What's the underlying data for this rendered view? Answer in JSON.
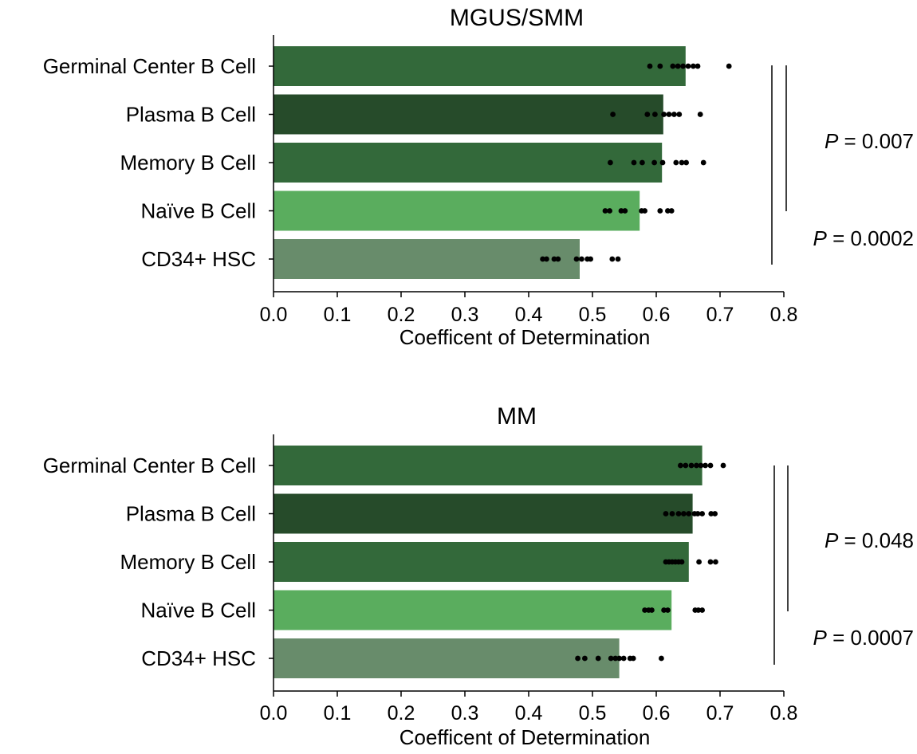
{
  "chart_data": [
    {
      "type": "bar",
      "orientation": "horizontal",
      "title": "MGUS/SMM",
      "xlabel": "Coefficent of Determination",
      "ylabel": "",
      "xlim": [
        0,
        0.8
      ],
      "xticks": [
        "0.0",
        "0.1",
        "0.2",
        "0.3",
        "0.4",
        "0.5",
        "0.6",
        "0.7",
        "0.8"
      ],
      "grid": false,
      "categories": [
        "Germinal Center B Cell",
        "Plasma B Cell",
        "Memory B Cell",
        "Naïve B Cell",
        "CD34+ HSC"
      ],
      "values": [
        0.646,
        0.611,
        0.609,
        0.574,
        0.48
      ],
      "colors": [
        "#33693a",
        "#264b2a",
        "#33693a",
        "#5aad5e",
        "#688c6b"
      ],
      "points": [
        [
          0.59,
          0.606,
          0.626,
          0.634,
          0.642,
          0.65,
          0.658,
          0.665,
          0.714
        ],
        [
          0.532,
          0.586,
          0.598,
          0.612,
          0.62,
          0.628,
          0.636,
          0.669
        ],
        [
          0.528,
          0.565,
          0.578,
          0.597,
          0.61,
          0.631,
          0.64,
          0.647,
          0.674
        ],
        [
          0.52,
          0.527,
          0.545,
          0.551,
          0.577,
          0.582,
          0.606,
          0.618,
          0.624
        ],
        [
          0.422,
          0.428,
          0.44,
          0.446,
          0.475,
          0.483,
          0.492,
          0.497,
          0.531,
          0.54
        ]
      ],
      "annotations": [
        {
          "label": "P",
          "text": " = 0.007",
          "from": "Germinal Center B Cell",
          "to": "Naïve B Cell"
        },
        {
          "label": "P",
          "text": " = 0.0002",
          "from": "Germinal Center B Cell",
          "to": "CD34+ HSC"
        }
      ]
    },
    {
      "type": "bar",
      "orientation": "horizontal",
      "title": "MM",
      "xlabel": "Coefficent of Determination",
      "ylabel": "",
      "xlim": [
        0,
        0.8
      ],
      "xticks": [
        "0.0",
        "0.1",
        "0.2",
        "0.3",
        "0.4",
        "0.5",
        "0.6",
        "0.7",
        "0.8"
      ],
      "grid": false,
      "categories": [
        "Germinal Center B Cell",
        "Plasma B Cell",
        "Memory B Cell",
        "Naïve B Cell",
        "CD34+ HSC"
      ],
      "values": [
        0.672,
        0.657,
        0.651,
        0.624,
        0.542
      ],
      "colors": [
        "#33693a",
        "#264b2a",
        "#33693a",
        "#5aad5e",
        "#688c6b"
      ],
      "points": [
        [
          0.638,
          0.646,
          0.655,
          0.663,
          0.67,
          0.677,
          0.685,
          0.705
        ],
        [
          0.615,
          0.625,
          0.635,
          0.643,
          0.651,
          0.66,
          0.665,
          0.672,
          0.686,
          0.692
        ],
        [
          0.615,
          0.62,
          0.625,
          0.63,
          0.635,
          0.64,
          0.667,
          0.685,
          0.693
        ],
        [
          0.582,
          0.588,
          0.593,
          0.612,
          0.618,
          0.661,
          0.666,
          0.672
        ],
        [
          0.477,
          0.488,
          0.509,
          0.529,
          0.536,
          0.542,
          0.549,
          0.559,
          0.564,
          0.608
        ]
      ],
      "annotations": [
        {
          "label": "P",
          "text": " = 0.048",
          "from": "Germinal Center B Cell",
          "to": "Naïve B Cell"
        },
        {
          "label": "P",
          "text": " = 0.0007",
          "from": "Germinal Center B Cell",
          "to": "CD34+ HSC"
        }
      ]
    }
  ]
}
